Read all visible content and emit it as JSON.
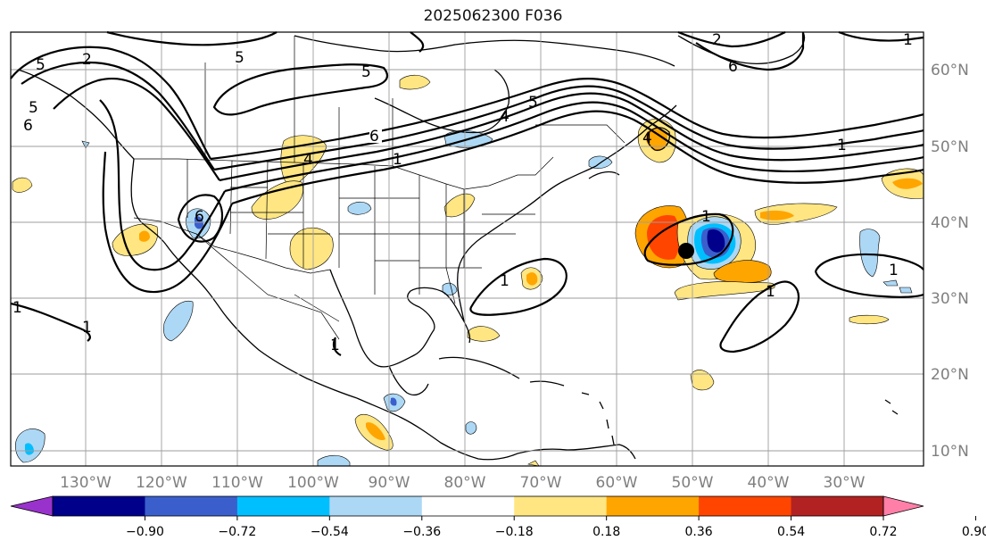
{
  "title": "2025062300 F036",
  "lon_labels": [
    "130°W",
    "120°W",
    "110°W",
    "100°W",
    "90°W",
    "80°W",
    "70°W",
    "60°W",
    "50°W",
    "40°W",
    "30°W"
  ],
  "lat_labels": [
    "60°N",
    "50°N",
    "40°N",
    "30°N",
    "20°N",
    "10°N"
  ],
  "colorbar": {
    "tick_labels": [
      "−0.90",
      "−0.72",
      "−0.54",
      "−0.36",
      "−0.18",
      "0.18",
      "0.36",
      "0.54",
      "0.72",
      "0.90"
    ],
    "colors": [
      "#9932cc",
      "#00008b",
      "#3a5fcd",
      "#00bfff",
      "#add8f5",
      "#ffffff",
      "#ffe682",
      "#ffa500",
      "#ff4500",
      "#b22222",
      "#ff7fa8"
    ]
  },
  "contour_labels": [
    "5",
    "6",
    "5",
    "4",
    "5",
    "1",
    "2",
    "6",
    "5",
    "4",
    "5",
    "1",
    "1",
    "1",
    "1",
    "1",
    "6",
    "1",
    "1",
    "1",
    "2",
    "6",
    "4",
    "1"
  ],
  "colors": {
    "grid": "#9e9e9e",
    "coast": "#000000",
    "axis_label": "#7f7f7f"
  }
}
